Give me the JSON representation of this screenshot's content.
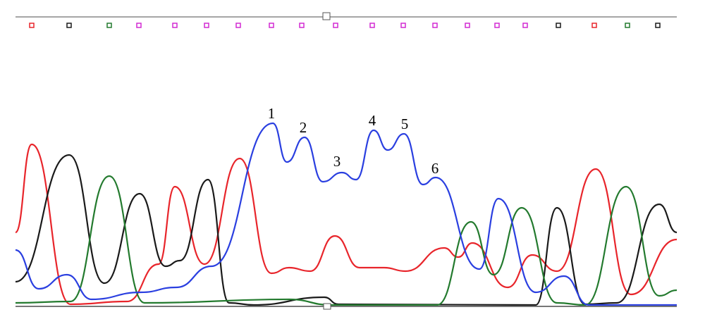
{
  "peak_labels": [
    "1",
    "2",
    "3",
    "4",
    "5",
    "6"
  ]
}
